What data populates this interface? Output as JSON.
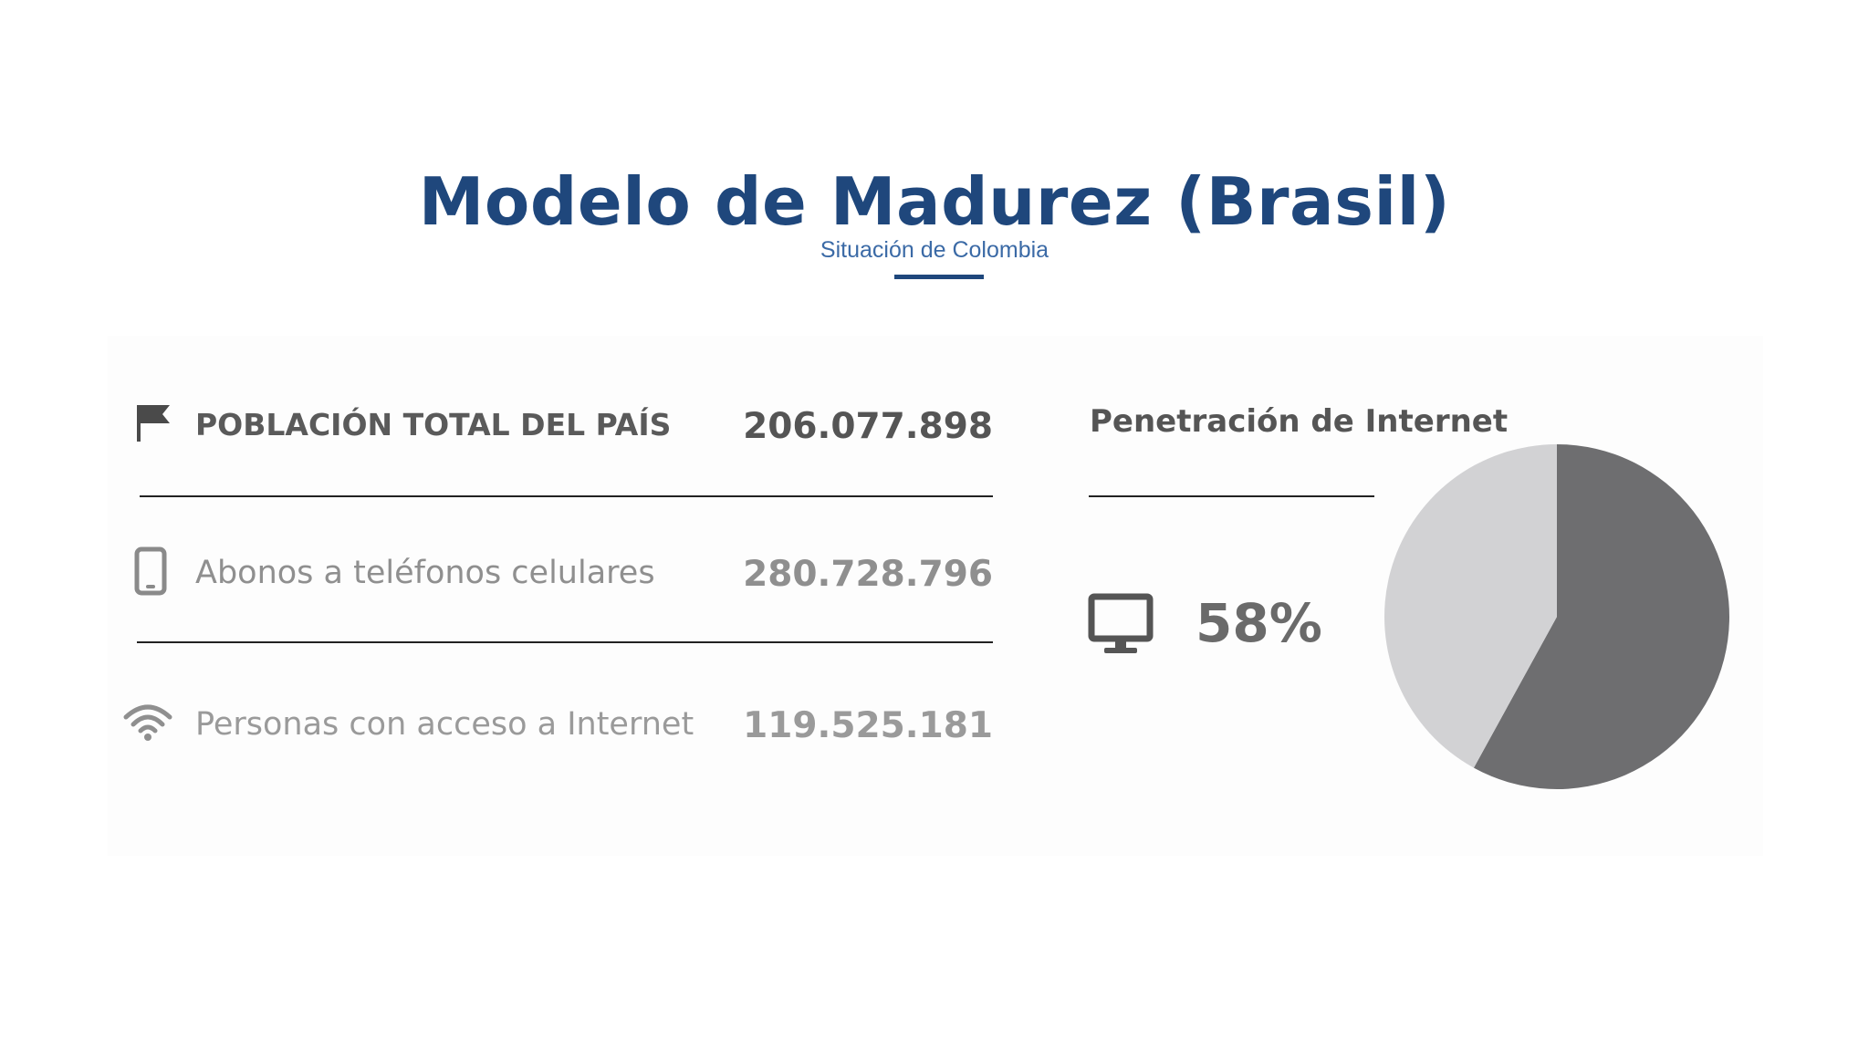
{
  "header": {
    "title": "Modelo de Madurez (Brasil)",
    "subtitle": "Situación de Colombia",
    "accent_color": "#1f477c"
  },
  "stats": [
    {
      "icon": "flag-icon",
      "label": "POBLACIÓN TOTAL DEL PAÍS",
      "value": "206.077.898"
    },
    {
      "icon": "mobile-phone-icon",
      "label": "Abonos a teléfonos celulares",
      "value": "280.728.796"
    },
    {
      "icon": "wifi-icon",
      "label": "Personas con acceso a Internet",
      "value": "119.525.181"
    }
  ],
  "internet": {
    "title": "Penetración de Internet",
    "icon": "monitor-icon",
    "percent_label": "58%"
  },
  "chart_data": {
    "type": "pie",
    "categories": [
      "",
      ""
    ],
    "values": [
      58,
      42
    ],
    "colors": [
      "#6e6e70",
      "#d2d2d4"
    ],
    "title": ""
  }
}
